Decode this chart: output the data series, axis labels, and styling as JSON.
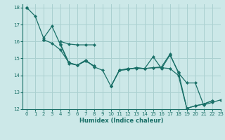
{
  "xlabel": "Humidex (Indice chaleur)",
  "xlim": [
    -0.5,
    23
  ],
  "ylim": [
    12,
    18.2
  ],
  "xticks": [
    0,
    1,
    2,
    3,
    4,
    5,
    6,
    7,
    8,
    9,
    10,
    11,
    12,
    13,
    14,
    15,
    16,
    17,
    18,
    19,
    20,
    21,
    22,
    23
  ],
  "yticks": [
    12,
    13,
    14,
    15,
    16,
    17,
    18
  ],
  "bg_color": "#cce8e8",
  "grid_color": "#aad0d0",
  "line_color": "#1a7068",
  "series": [
    [
      18.0,
      17.5,
      16.2,
      16.9,
      15.8,
      14.7,
      14.6,
      14.9,
      14.5,
      14.3,
      13.35,
      14.3,
      14.4,
      14.4,
      14.4,
      15.1,
      14.4,
      15.2,
      14.2,
      12.05,
      12.2,
      12.3,
      12.5,
      null
    ],
    [
      18.0,
      null,
      16.1,
      null,
      15.85,
      14.75,
      14.6,
      14.85,
      14.55,
      null,
      13.35,
      14.3,
      14.35,
      14.45,
      14.4,
      14.45,
      14.45,
      14.4,
      14.0,
      12.05,
      12.2,
      12.3,
      12.5,
      null
    ],
    [
      18.0,
      null,
      16.1,
      15.9,
      15.5,
      14.75,
      14.6,
      14.85,
      14.55,
      null,
      13.35,
      14.3,
      14.35,
      14.45,
      14.4,
      14.45,
      14.5,
      15.25,
      14.15,
      13.55,
      13.55,
      12.25,
      12.4,
      12.55
    ],
    [
      null,
      null,
      16.1,
      null,
      16.0,
      15.85,
      15.8,
      15.8,
      15.8,
      null,
      null,
      null,
      null,
      null,
      null,
      null,
      null,
      null,
      null,
      null,
      null,
      null,
      null,
      null
    ]
  ]
}
